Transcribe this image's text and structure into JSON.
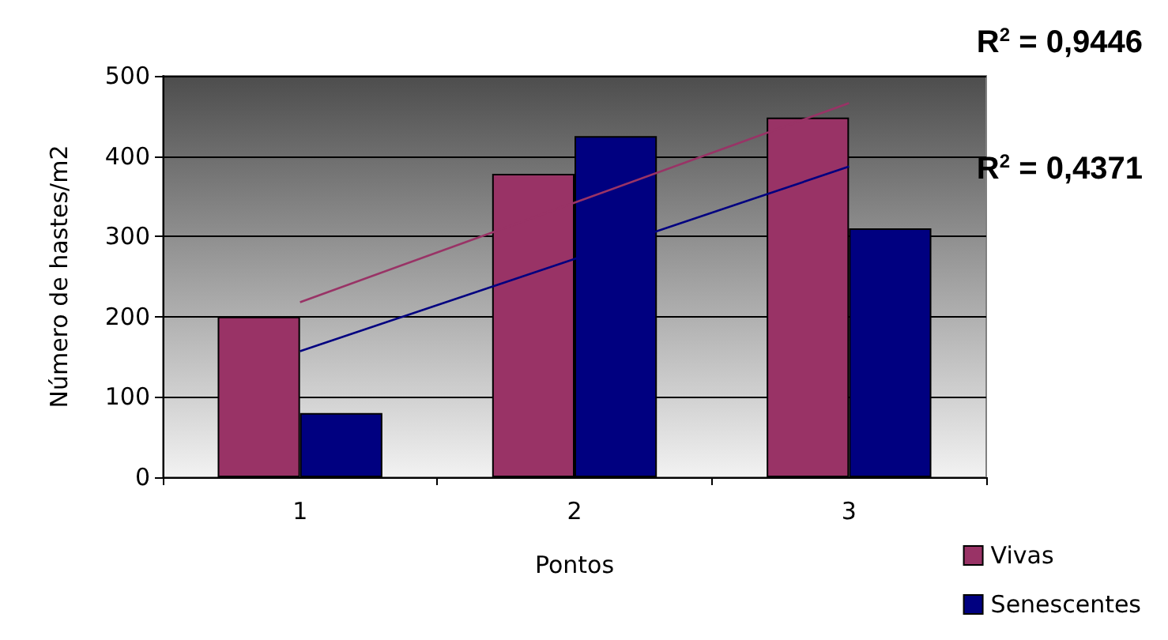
{
  "chart_data": {
    "type": "bar",
    "xlabel": "Pontos",
    "ylabel": "Número de hastes/m2",
    "categories": [
      "1",
      "2",
      "3"
    ],
    "series": [
      {
        "name": "Vivas",
        "color": "#993366",
        "values": [
          200,
          378,
          448
        ]
      },
      {
        "name": "Senescentes",
        "color": "#000080",
        "values": [
          80,
          425,
          310
        ]
      },
      {
        "type": "line",
        "color": "#993366",
        "values": [
          218,
          342,
          466
        ]
      },
      {
        "type": "line",
        "color": "#000080",
        "values": [
          157,
          272,
          387
        ]
      }
    ],
    "ylim": [
      0,
      500
    ],
    "yticks": [
      0,
      100,
      200,
      300,
      400,
      500
    ],
    "grid": "y",
    "legend": "bottom right",
    "annotations": [
      "R$^{2}$ = 0,9446",
      "R$^{2}$ = 0,4371"
    ]
  }
}
